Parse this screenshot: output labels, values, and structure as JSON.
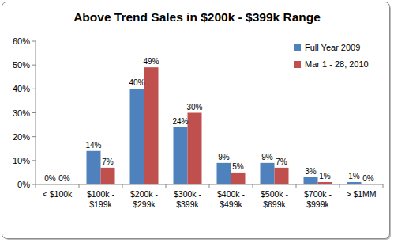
{
  "chart_data": {
    "type": "bar",
    "title": "Above Trend Sales in $200k - $399k Range",
    "categories": [
      "< $100k",
      "$100k - $199k",
      "$200k - $299k",
      "$300k - $399k",
      "$400k - $499k",
      "$500k - $699k",
      "$700k - $999k",
      "> $1MM"
    ],
    "series": [
      {
        "name": "Full Year 2009",
        "color": "#4f81bd",
        "values": [
          0,
          14,
          40,
          24,
          9,
          9,
          3,
          1
        ],
        "value_labels": [
          "0%",
          "14%",
          "40%",
          "24%",
          "9%",
          "9%",
          "3%",
          "1%"
        ]
      },
      {
        "name": "Mar 1 - 28, 2010",
        "color": "#c0504d",
        "values": [
          0,
          7,
          49,
          30,
          5,
          7,
          1,
          0
        ],
        "value_labels": [
          "0%",
          "7%",
          "49%",
          "30%",
          "5%",
          "7%",
          "1%",
          "0%"
        ]
      }
    ],
    "ylim": [
      0,
      60
    ],
    "yticks": [
      {
        "value": 0,
        "label": "0%"
      },
      {
        "value": 10,
        "label": "10%"
      },
      {
        "value": 20,
        "label": "20%"
      },
      {
        "value": 30,
        "label": "30%"
      },
      {
        "value": 40,
        "label": "40%"
      },
      {
        "value": 50,
        "label": "50%"
      },
      {
        "value": 60,
        "label": "60%"
      }
    ],
    "grid": false,
    "legend": "top-right",
    "data_labels": true
  }
}
